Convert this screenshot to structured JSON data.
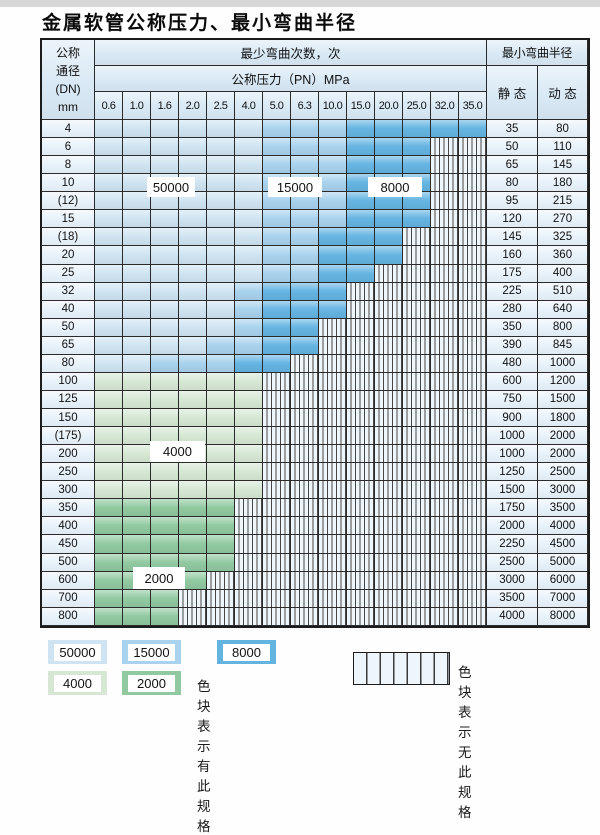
{
  "chart_data": {
    "type": "table",
    "title": "金属软管公称压力、最小弯曲半径",
    "corner_lines": [
      "公称",
      "通径",
      "(DN)",
      "mm"
    ],
    "bend_cycles_header": "最少弯曲次数，次",
    "pressure_header": "公称压力（PN）MPa",
    "radius_header": "最小弯曲半径",
    "static_header": "静 态",
    "dynamic_header": "动 态",
    "pressure_columns": [
      "0.6",
      "1.0",
      "1.6",
      "2.0",
      "2.5",
      "4.0",
      "5.0",
      "6.3",
      "10.0",
      "15.0",
      "20.0",
      "25.0",
      "32.0",
      "35.0"
    ],
    "zone_codes": {
      "L": "50000",
      "M": "15000",
      "D": "8000",
      "G": "4000",
      "E": "2000",
      "X": "none"
    },
    "rows": [
      {
        "dn": "4",
        "zones": "LLLLLLMMMDDDDD",
        "static": "35",
        "dynamic": "80"
      },
      {
        "dn": "6",
        "zones": "LLLLLLMMMDDDXX",
        "static": "50",
        "dynamic": "110"
      },
      {
        "dn": "8",
        "zones": "LLLLLLMMMDDDXX",
        "static": "65",
        "dynamic": "145"
      },
      {
        "dn": "10",
        "zones": "LLLLLLMMMDDDXX",
        "static": "80",
        "dynamic": "180"
      },
      {
        "dn": "(12)",
        "zones": "LLLLLLMMMDDDXX",
        "static": "95",
        "dynamic": "215"
      },
      {
        "dn": "15",
        "zones": "LLLLLLMMMDDDXX",
        "static": "120",
        "dynamic": "270"
      },
      {
        "dn": "(18)",
        "zones": "LLLLLLMMDDDXXX",
        "static": "145",
        "dynamic": "325"
      },
      {
        "dn": "20",
        "zones": "LLLLLLMMDDDXXX",
        "static": "160",
        "dynamic": "360"
      },
      {
        "dn": "25",
        "zones": "LLLLLLMMDDXXXX",
        "static": "175",
        "dynamic": "400"
      },
      {
        "dn": "32",
        "zones": "LLLLLMDDDXXXXX",
        "static": "225",
        "dynamic": "510"
      },
      {
        "dn": "40",
        "zones": "LLLLLMDDDXXXXX",
        "static": "280",
        "dynamic": "640"
      },
      {
        "dn": "50",
        "zones": "LLLLLMDDXXXXXX",
        "static": "350",
        "dynamic": "800"
      },
      {
        "dn": "65",
        "zones": "LLLLMMDDXXXXXX",
        "static": "390",
        "dynamic": "845"
      },
      {
        "dn": "80",
        "zones": "LLMMMDDXXXXXXX",
        "static": "480",
        "dynamic": "1000"
      },
      {
        "dn": "100",
        "zones": "GGGGGGXXXXXXXX",
        "static": "600",
        "dynamic": "1200"
      },
      {
        "dn": "125",
        "zones": "GGGGGGXXXXXXXX",
        "static": "750",
        "dynamic": "1500"
      },
      {
        "dn": "150",
        "zones": "GGGGGGXXXXXXXX",
        "static": "900",
        "dynamic": "1800"
      },
      {
        "dn": "(175)",
        "zones": "GGGGGGXXXXXXXX",
        "static": "1000",
        "dynamic": "2000"
      },
      {
        "dn": "200",
        "zones": "GGGGGGXXXXXXXX",
        "static": "1000",
        "dynamic": "2000"
      },
      {
        "dn": "250",
        "zones": "GGGGGGXXXXXXXX",
        "static": "1250",
        "dynamic": "2500"
      },
      {
        "dn": "300",
        "zones": "GGGGGGXXXXXXXX",
        "static": "1500",
        "dynamic": "3000"
      },
      {
        "dn": "350",
        "zones": "EEEEEXXXXXXXXX",
        "static": "1750",
        "dynamic": "3500"
      },
      {
        "dn": "400",
        "zones": "EEEEEXXXXXXXXX",
        "static": "2000",
        "dynamic": "4000"
      },
      {
        "dn": "450",
        "zones": "EEEEEXXXXXXXXX",
        "static": "2250",
        "dynamic": "4500"
      },
      {
        "dn": "500",
        "zones": "EEEEEXXXXXXXXX",
        "static": "2500",
        "dynamic": "5000"
      },
      {
        "dn": "600",
        "zones": "EEEEXXXXXXXXXX",
        "static": "3000",
        "dynamic": "6000"
      },
      {
        "dn": "700",
        "zones": "EEEXXXXXXXXXXX",
        "static": "3500",
        "dynamic": "7000"
      },
      {
        "dn": "800",
        "zones": "EEEXXXXXXXXXXX",
        "static": "4000",
        "dynamic": "8000"
      }
    ],
    "zone_overlay_labels": [
      "50000",
      "15000",
      "8000",
      "4000",
      "2000"
    ],
    "legend": {
      "items": [
        {
          "value": "50000",
          "color": "#cfe4f2"
        },
        {
          "value": "15000",
          "color": "#a8d2ed"
        },
        {
          "value": "8000",
          "color": "#64b4e2"
        },
        {
          "value": "4000",
          "color": "#d6e8d4"
        },
        {
          "value": "2000",
          "color": "#90c9a0"
        }
      ],
      "has_spec_note": "色块表示有此规格",
      "no_spec_note": "色块表示无此规格"
    },
    "colors": {
      "cycles_50000": "#cfe4f2",
      "cycles_15000": "#a8d2ed",
      "cycles_8000": "#64b4e2",
      "cycles_4000": "#d6e8d4",
      "cycles_2000": "#90c9a0",
      "hatch_bg": "#eef5fb",
      "header_bg": "#d9e9f5",
      "grid_line": "#2b2b2b"
    }
  }
}
